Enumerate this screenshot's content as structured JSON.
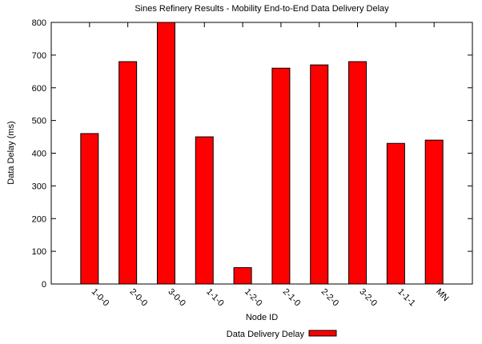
{
  "chart_data": {
    "type": "bar",
    "title": "Sines Refinery Results - Mobility End-to-End Data Delivery Delay",
    "xlabel": "Node ID",
    "ylabel": "Data Delay (ms)",
    "ylim": [
      0,
      800
    ],
    "yticks": [
      0,
      100,
      200,
      300,
      400,
      500,
      600,
      700,
      800
    ],
    "categories": [
      "1-0-0",
      "2-0-0",
      "3-0-0",
      "1-1-0",
      "1-2-0",
      "2-1-0",
      "2-2-0",
      "3-2-0",
      "1-1-1",
      "MN"
    ],
    "series": [
      {
        "name": "Data Delivery Delay",
        "values": [
          460,
          680,
          800,
          450,
          50,
          660,
          670,
          680,
          430,
          440
        ],
        "color": "#ff0000"
      }
    ],
    "grid": false,
    "legend_position": "bottom"
  }
}
